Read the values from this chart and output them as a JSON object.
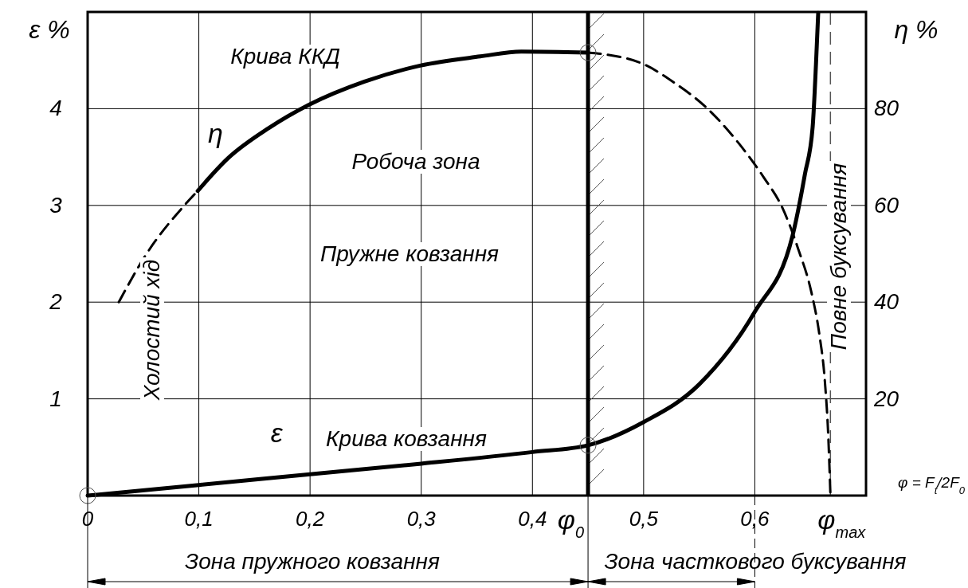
{
  "chart_data": {
    "type": "line",
    "xlabel": "φ = F$_{t}$/2F$_{0}$",
    "ylabel": "ε %",
    "y2label": "η %",
    "xlim": [
      0,
      0.7
    ],
    "xticks": [
      {
        "value": 0,
        "label": "0"
      },
      {
        "value": 0.1,
        "label": "0,1"
      },
      {
        "value": 0.2,
        "label": "0,2"
      },
      {
        "value": 0.3,
        "label": "0,3"
      },
      {
        "value": 0.4,
        "label": "0,4"
      },
      {
        "value": 0.5,
        "label": "0,5"
      },
      {
        "value": 0.6,
        "label": "0,6"
      }
    ],
    "ylim": [
      0,
      5
    ],
    "yticks": [
      1,
      2,
      3,
      4
    ],
    "y2lim": [
      0,
      100
    ],
    "y2ticks": [
      20,
      40,
      60,
      80
    ],
    "grid": true,
    "series": [
      {
        "name": "ε",
        "color": "#000000",
        "line_style": "solid",
        "x": [
          0,
          0.1,
          0.2,
          0.3,
          0.4,
          0.45,
          0.5,
          0.55,
          0.6,
          0.634,
          0.645,
          0.652,
          0.655,
          0.657
        ],
        "values": [
          0,
          0.11,
          0.22,
          0.33,
          0.45,
          0.52,
          0.76,
          1.15,
          1.9,
          2.69,
          3.32,
          3.81,
          4.46,
          4.99
        ]
      },
      {
        "color": "#000000",
        "axis": "y2",
        "line_style": "dashed",
        "x": [
          0.028,
          0.053,
          0.087,
          0.099
        ],
        "values": [
          40,
          50,
          60,
          63
        ]
      },
      {
        "name": "η",
        "color": "#000000",
        "axis": "y2",
        "line_style": "solid",
        "x": [
          0.099,
          0.126,
          0.163,
          0.199,
          0.249,
          0.299,
          0.353,
          0.39,
          0.45
        ],
        "values": [
          63,
          69.7,
          76,
          80.8,
          85.6,
          88.9,
          90.8,
          91.8,
          91.6
        ]
      },
      {
        "color": "#000000",
        "axis": "y2",
        "line_style": "dashed",
        "x": [
          0.45,
          0.466,
          0.5,
          0.528,
          0.557,
          0.585,
          0.608,
          0.625,
          0.639,
          0.651,
          0.658,
          0.663,
          0.666,
          0.668
        ],
        "values": [
          91.6,
          91.2,
          89.2,
          85.3,
          80.1,
          73,
          65.8,
          59.4,
          51,
          41.9,
          33.4,
          23.6,
          12.6,
          0
        ]
      }
    ],
    "ref_lines": [
      {
        "axis": "x",
        "value": 0.45,
        "label": "φ$_{0}$",
        "line_style": "solid",
        "color": "#000000"
      },
      {
        "axis": "x",
        "value": 0.668,
        "label": "φ$_{max}$",
        "line_style": "dashed",
        "color": "#555555"
      }
    ],
    "annotations": [
      "Крива ККД",
      "Робоча зона",
      "Пружне ковзання",
      "Холостий хід",
      "Крива ковзання",
      "Повне буксування",
      "Зона пружного ковзання",
      "Зона часткового буксування"
    ]
  }
}
